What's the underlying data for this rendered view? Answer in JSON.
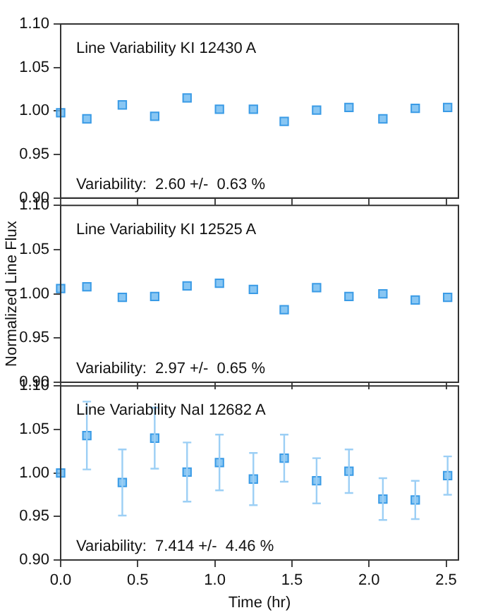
{
  "chart_data": [
    {
      "type": "scatter",
      "title": "Line Variability KI 12430 A",
      "annotations": [
        "Variability:  2.60 +/-  0.63 %"
      ],
      "marker": "square",
      "tick_labels": "y",
      "x": [
        0,
        0.17,
        0.4,
        0.61,
        0.82,
        1.03,
        1.25,
        1.45,
        1.66,
        1.87,
        2.09,
        2.3,
        2.51
      ],
      "series": [
        {
          "color": "#6ab8f0",
          "values": [
            0.998,
            0.991,
            1.007,
            0.994,
            1.015,
            1.002,
            1.002,
            0.988,
            1.001,
            1.004,
            0.991,
            1.003,
            1.004
          ]
        }
      ],
      "xlim": [
        0,
        2.58
      ],
      "xticks": [
        {
          "value": 0,
          "label": null
        },
        {
          "value": 0.5,
          "label": null
        },
        {
          "value": 1,
          "label": null
        },
        {
          "value": 1.5,
          "label": null
        },
        {
          "value": 2,
          "label": null
        },
        {
          "value": 2.5,
          "label": null
        }
      ],
      "ylim": [
        0.9,
        1.1
      ],
      "yticks": [
        {
          "value": 0.9,
          "label": "0.90"
        },
        {
          "value": 0.95,
          "label": "0.95"
        },
        {
          "value": 1,
          "label": "1.00"
        },
        {
          "value": 1.05,
          "label": "1.05"
        },
        {
          "value": 1.1,
          "label": "1.10"
        }
      ]
    },
    {
      "type": "scatter",
      "title": "Line Variability KI 12525 A",
      "annotations": [
        "Variability:  2.97 +/-  0.65 %"
      ],
      "ylabel": "Normalized Line Flux",
      "marker": "square",
      "tick_labels": "y",
      "x": [
        0,
        0.17,
        0.4,
        0.61,
        0.82,
        1.03,
        1.25,
        1.45,
        1.66,
        1.87,
        2.09,
        2.3,
        2.51
      ],
      "series": [
        {
          "color": "#6ab8f0",
          "values": [
            1.006,
            1.008,
            0.996,
            0.997,
            1.009,
            1.012,
            1.005,
            0.982,
            1.007,
            0.997,
            1.0,
            0.993,
            0.996
          ]
        }
      ],
      "xlim": [
        0,
        2.58
      ],
      "xticks": [
        {
          "value": 0,
          "label": null
        },
        {
          "value": 0.5,
          "label": null
        },
        {
          "value": 1,
          "label": null
        },
        {
          "value": 1.5,
          "label": null
        },
        {
          "value": 2,
          "label": null
        },
        {
          "value": 2.5,
          "label": null
        }
      ],
      "ylim": [
        0.9,
        1.1
      ],
      "yticks": [
        {
          "value": 0.9,
          "label": "0.90"
        },
        {
          "value": 0.95,
          "label": "0.95"
        },
        {
          "value": 1,
          "label": "1.00"
        },
        {
          "value": 1.05,
          "label": "1.05"
        },
        {
          "value": 1.1,
          "label": "1.10"
        }
      ]
    },
    {
      "type": "scatter",
      "title": "Line Variability NaI 12682 A",
      "annotations": [
        "Variability:  7.414 +/-  4.46 %"
      ],
      "xlabel": "Time (hr)",
      "marker": "square",
      "x": [
        0,
        0.17,
        0.4,
        0.61,
        0.82,
        1.03,
        1.25,
        1.45,
        1.66,
        1.87,
        2.09,
        2.3,
        2.51
      ],
      "series": [
        {
          "color": "#6ab8f0",
          "values": [
            1.0,
            1.043,
            0.989,
            1.04,
            1.001,
            1.012,
            0.993,
            1.017,
            0.991,
            1.002,
            0.97,
            0.969,
            0.997
          ],
          "errors": [
            null,
            0.039,
            0.038,
            0.035,
            0.034,
            0.032,
            0.03,
            0.027,
            0.026,
            0.025,
            0.024,
            0.022,
            0.022
          ]
        }
      ],
      "xlim": [
        0,
        2.58
      ],
      "xticks": [
        {
          "value": 0,
          "label": "0.0"
        },
        {
          "value": 0.5,
          "label": "0.5"
        },
        {
          "value": 1,
          "label": "1.0"
        },
        {
          "value": 1.5,
          "label": "1.5"
        },
        {
          "value": 2,
          "label": "2.0"
        },
        {
          "value": 2.5,
          "label": "2.5"
        }
      ],
      "ylim": [
        0.9,
        1.1
      ],
      "yticks": [
        {
          "value": 0.9,
          "label": "0.90"
        },
        {
          "value": 0.95,
          "label": "0.95"
        },
        {
          "value": 1,
          "label": "1.00"
        },
        {
          "value": 1.05,
          "label": "1.05"
        },
        {
          "value": 1.1,
          "label": "1.10"
        }
      ]
    }
  ]
}
